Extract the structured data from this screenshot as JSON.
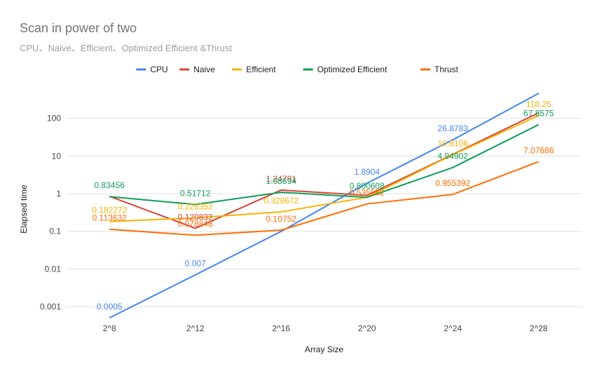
{
  "chart_data": {
    "type": "line",
    "title": "Scan in power of two",
    "subtitle": "CPU、Naive、Efficient、Optimized Efficient &Thrust",
    "xlabel": "Array Size",
    "ylabel": "Elapsed time",
    "categories": [
      "2^8",
      "2^12",
      "2^16",
      "2^20",
      "2^24",
      "2^28"
    ],
    "y_scale": "log",
    "ylim": [
      0.0005,
      500
    ],
    "y_ticks": [
      0.001,
      0.01,
      0.1,
      1,
      10,
      100
    ],
    "y_tick_labels": [
      "0.001",
      "0.01",
      "0.1",
      "1",
      "10",
      "100"
    ],
    "legend_position": "top",
    "grid": true,
    "series": [
      {
        "name": "CPU",
        "color": "#4285f4",
        "values": [
          0.0005,
          0.007,
          0.1,
          1.8904,
          26.8783,
          460
        ],
        "labels": [
          "0.0005",
          "0.007",
          "",
          "1.8904",
          "26.8783",
          ""
        ]
      },
      {
        "name": "Naive",
        "color": "#db4437",
        "values": [
          0.85,
          0.120832,
          1.24791,
          0.9,
          11,
          140
        ],
        "labels": [
          "",
          "0.120832",
          "1.24791",
          "",
          "",
          ""
        ]
      },
      {
        "name": "Efficient",
        "color": "#f4b400",
        "values": [
          0.182272,
          0.228352,
          0.328672,
          0.8,
          10.8106,
          118.25
        ],
        "labels": [
          "0.182272",
          "0.228352",
          "0.328672",
          "",
          "10.8106",
          "118.25"
        ]
      },
      {
        "name": "Optimized Efficient",
        "color": "#0f9d58",
        "values": [
          0.83456,
          0.51712,
          1.08694,
          0.800608,
          4.94902,
          67.8575
        ],
        "labels": [
          "0.83456",
          "0.51712",
          "1.08694",
          "0.800608",
          "4.94902",
          "67.8575"
        ]
      },
      {
        "name": "Thrust",
        "color": "#ff6d01",
        "values": [
          0.113632,
          0.078848,
          0.10752,
          0.535552,
          0.955392,
          7.07686
        ],
        "labels": [
          "0.113632",
          "0.078848",
          "0.10752",
          "0.535552",
          "0.955392",
          "7.07686"
        ]
      }
    ]
  }
}
